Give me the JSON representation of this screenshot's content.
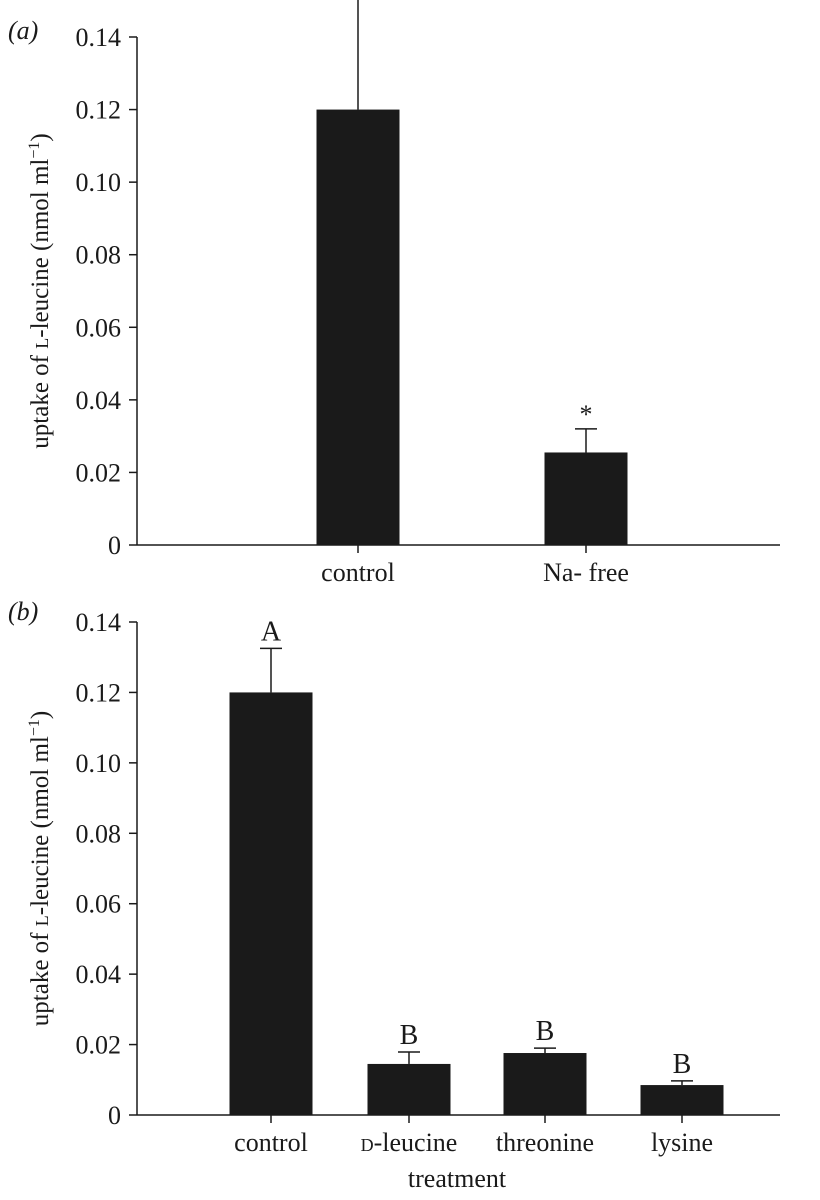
{
  "chart_data": [
    {
      "type": "bar",
      "panel_label": "(a)",
      "title": "",
      "xlabel": "",
      "ylabel_parts": [
        "uptake of ",
        "l",
        "-leucine (nmol ml",
        "−1",
        ")"
      ],
      "ylabel": "uptake of L-leucine (nmol ml−1)",
      "ylim": [
        0,
        0.14
      ],
      "yticks": [
        "0",
        "0.02",
        "0.04",
        "0.06",
        "0.08",
        "0.10",
        "0.12",
        "0.14"
      ],
      "categories": [
        "control",
        "Na- free"
      ],
      "values": [
        0.12,
        0.0255
      ],
      "errors_upper": [
        0.0325,
        0.0065
      ],
      "annotations": [
        "",
        "*"
      ],
      "bar_color": "#1a1a1a"
    },
    {
      "type": "bar",
      "panel_label": "(b)",
      "title": "",
      "xlabel": "treatment",
      "ylabel_parts": [
        "uptake of ",
        "l",
        "-leucine (nmol ml",
        "−1",
        ")"
      ],
      "ylabel": "uptake of L-leucine (nmol ml−1)",
      "ylim": [
        0,
        0.14
      ],
      "yticks": [
        "0",
        "0.02",
        "0.04",
        "0.06",
        "0.08",
        "0.10",
        "0.12",
        "0.14"
      ],
      "categories": [
        "control",
        "d-leucine",
        "threonine",
        "lysine"
      ],
      "category_smallcaps_prefix": [
        "",
        "d",
        "",
        ""
      ],
      "values": [
        0.12,
        0.0145,
        0.0176,
        0.0085
      ],
      "errors_upper": [
        0.0125,
        0.0034,
        0.0014,
        0.0012
      ],
      "annotations": [
        "A",
        "B",
        "B",
        "B"
      ],
      "bar_color": "#1a1a1a"
    }
  ]
}
